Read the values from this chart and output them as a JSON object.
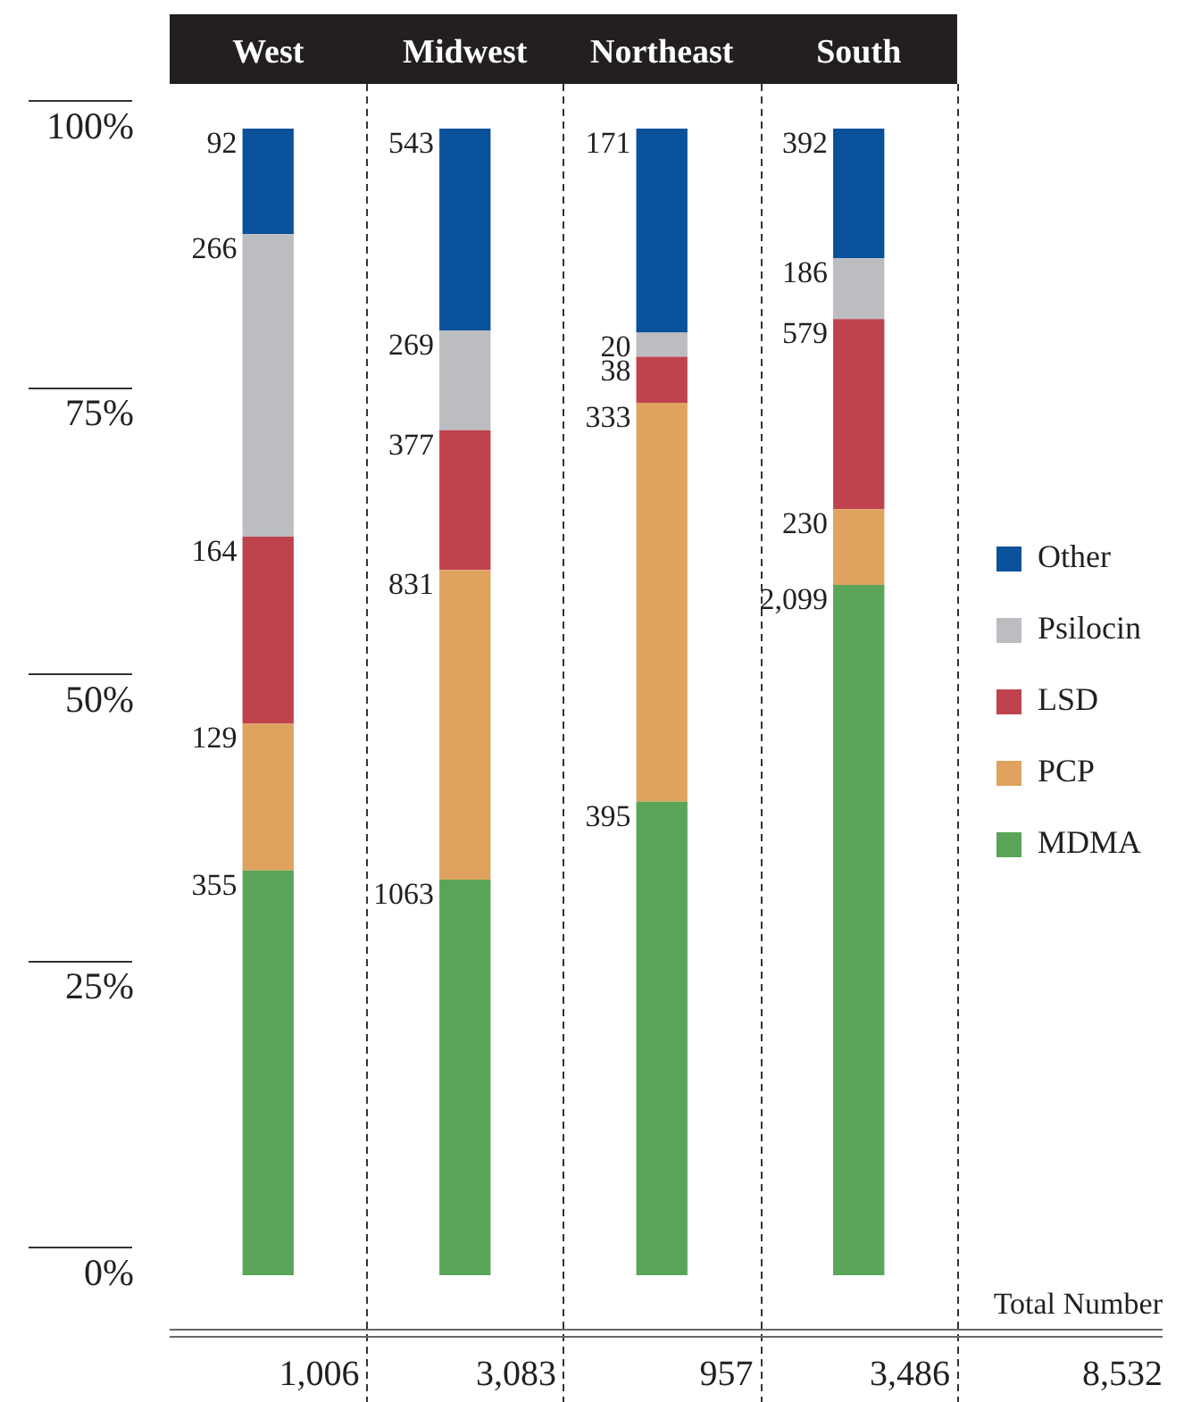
{
  "chart_data": {
    "type": "bar",
    "stacked": true,
    "categories": [
      "West",
      "Midwest",
      "Northeast",
      "South"
    ],
    "series": [
      {
        "name": "MDMA",
        "color": "#5aa55a",
        "values": [
          35.3,
          34.5,
          41.3,
          60.2
        ]
      },
      {
        "name": "PCP",
        "color": "#dfa35f",
        "values": [
          12.8,
          27.0,
          34.8,
          6.6
        ]
      },
      {
        "name": "LSD",
        "color": "#bf434d",
        "values": [
          16.3,
          12.2,
          4.0,
          16.6
        ]
      },
      {
        "name": "Psilocin",
        "color": "#bcbdc0",
        "values": [
          26.4,
          8.7,
          2.1,
          5.3
        ]
      },
      {
        "name": "Other",
        "color": "#0a519c",
        "values": [
          9.2,
          17.6,
          17.8,
          11.3
        ]
      }
    ],
    "ylim": [
      0,
      100
    ],
    "yticks": [
      {
        "value": 0,
        "label": "0%"
      },
      {
        "value": 25,
        "label": "25%"
      },
      {
        "value": 50,
        "label": "50%"
      },
      {
        "value": 75,
        "label": "75%"
      },
      {
        "value": 100,
        "label": "100%"
      }
    ],
    "grid": false,
    "legend": "right",
    "annotations": [
      {
        "text": "355",
        "x": "West",
        "y": 35.3
      },
      {
        "text": "129",
        "x": "West",
        "y": 48.1
      },
      {
        "text": "164",
        "x": "West",
        "y": 64.4
      },
      {
        "text": "266",
        "x": "West",
        "y": 90.8
      },
      {
        "text": "92",
        "x": "West",
        "y": 100
      },
      {
        "text": "1063",
        "x": "Midwest",
        "y": 34.5
      },
      {
        "text": "831",
        "x": "Midwest",
        "y": 61.5
      },
      {
        "text": "377",
        "x": "Midwest",
        "y": 73.7
      },
      {
        "text": "269",
        "x": "Midwest",
        "y": 82.4
      },
      {
        "text": "543",
        "x": "Midwest",
        "y": 100
      },
      {
        "text": "395",
        "x": "Northeast",
        "y": 41.3
      },
      {
        "text": "333",
        "x": "Northeast",
        "y": 76.1
      },
      {
        "text": "38",
        "x": "Northeast",
        "y": 80.1
      },
      {
        "text": "20",
        "x": "Northeast",
        "y": 82.2
      },
      {
        "text": "171",
        "x": "Northeast",
        "y": 100
      },
      {
        "text": "2,099",
        "x": "South",
        "y": 60.2
      },
      {
        "text": "230",
        "x": "South",
        "y": 66.8
      },
      {
        "text": "579",
        "x": "South",
        "y": 83.4
      },
      {
        "text": "186",
        "x": "South",
        "y": 88.7
      },
      {
        "text": "392",
        "x": "South",
        "y": 100
      },
      "1,006",
      "3,083",
      "957",
      "3,486",
      "Total Number",
      "8,532"
    ]
  }
}
